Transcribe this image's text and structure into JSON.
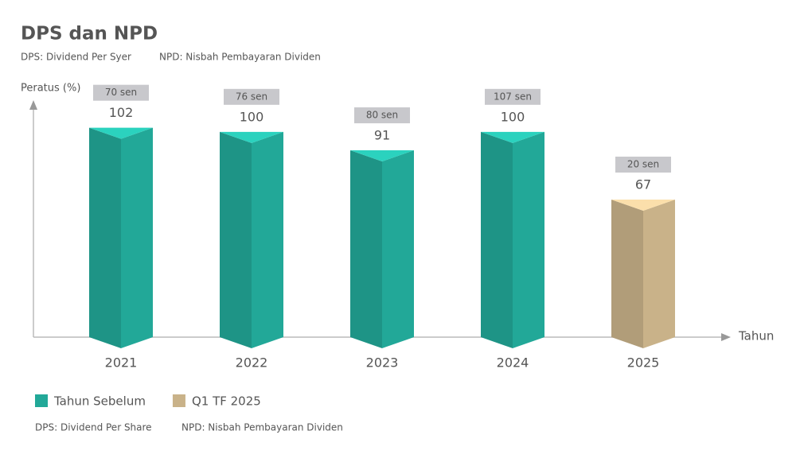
{
  "chart_data": {
    "type": "bar3d",
    "title": "DPS dan NPD",
    "notes": [
      "DPS: Dividend Per Syer",
      "NPD: Nisbah Pembayaran Dividen"
    ],
    "y_label": "Peratus (%)",
    "x_label": "Tahun",
    "categories": [
      "2021",
      "2022",
      "2023",
      "2024",
      "2025"
    ],
    "series": [
      {
        "name": "Tahun Sebelum",
        "color": "#22a898",
        "values": [
          102,
          100,
          91,
          100,
          null
        ]
      },
      {
        "name": "Q1 TF 2025",
        "color": "#c9b289",
        "values": [
          null,
          null,
          null,
          null,
          67
        ]
      }
    ],
    "dps_labels": [
      "70 sen",
      "76 sen",
      "80 sen",
      "107 sen",
      "20 sen"
    ],
    "ylim": [
      0,
      110
    ],
    "footer_notes": [
      "DPS: Dividend Per Share",
      "NPD: Nisbah Pembayaran Dividen"
    ]
  }
}
